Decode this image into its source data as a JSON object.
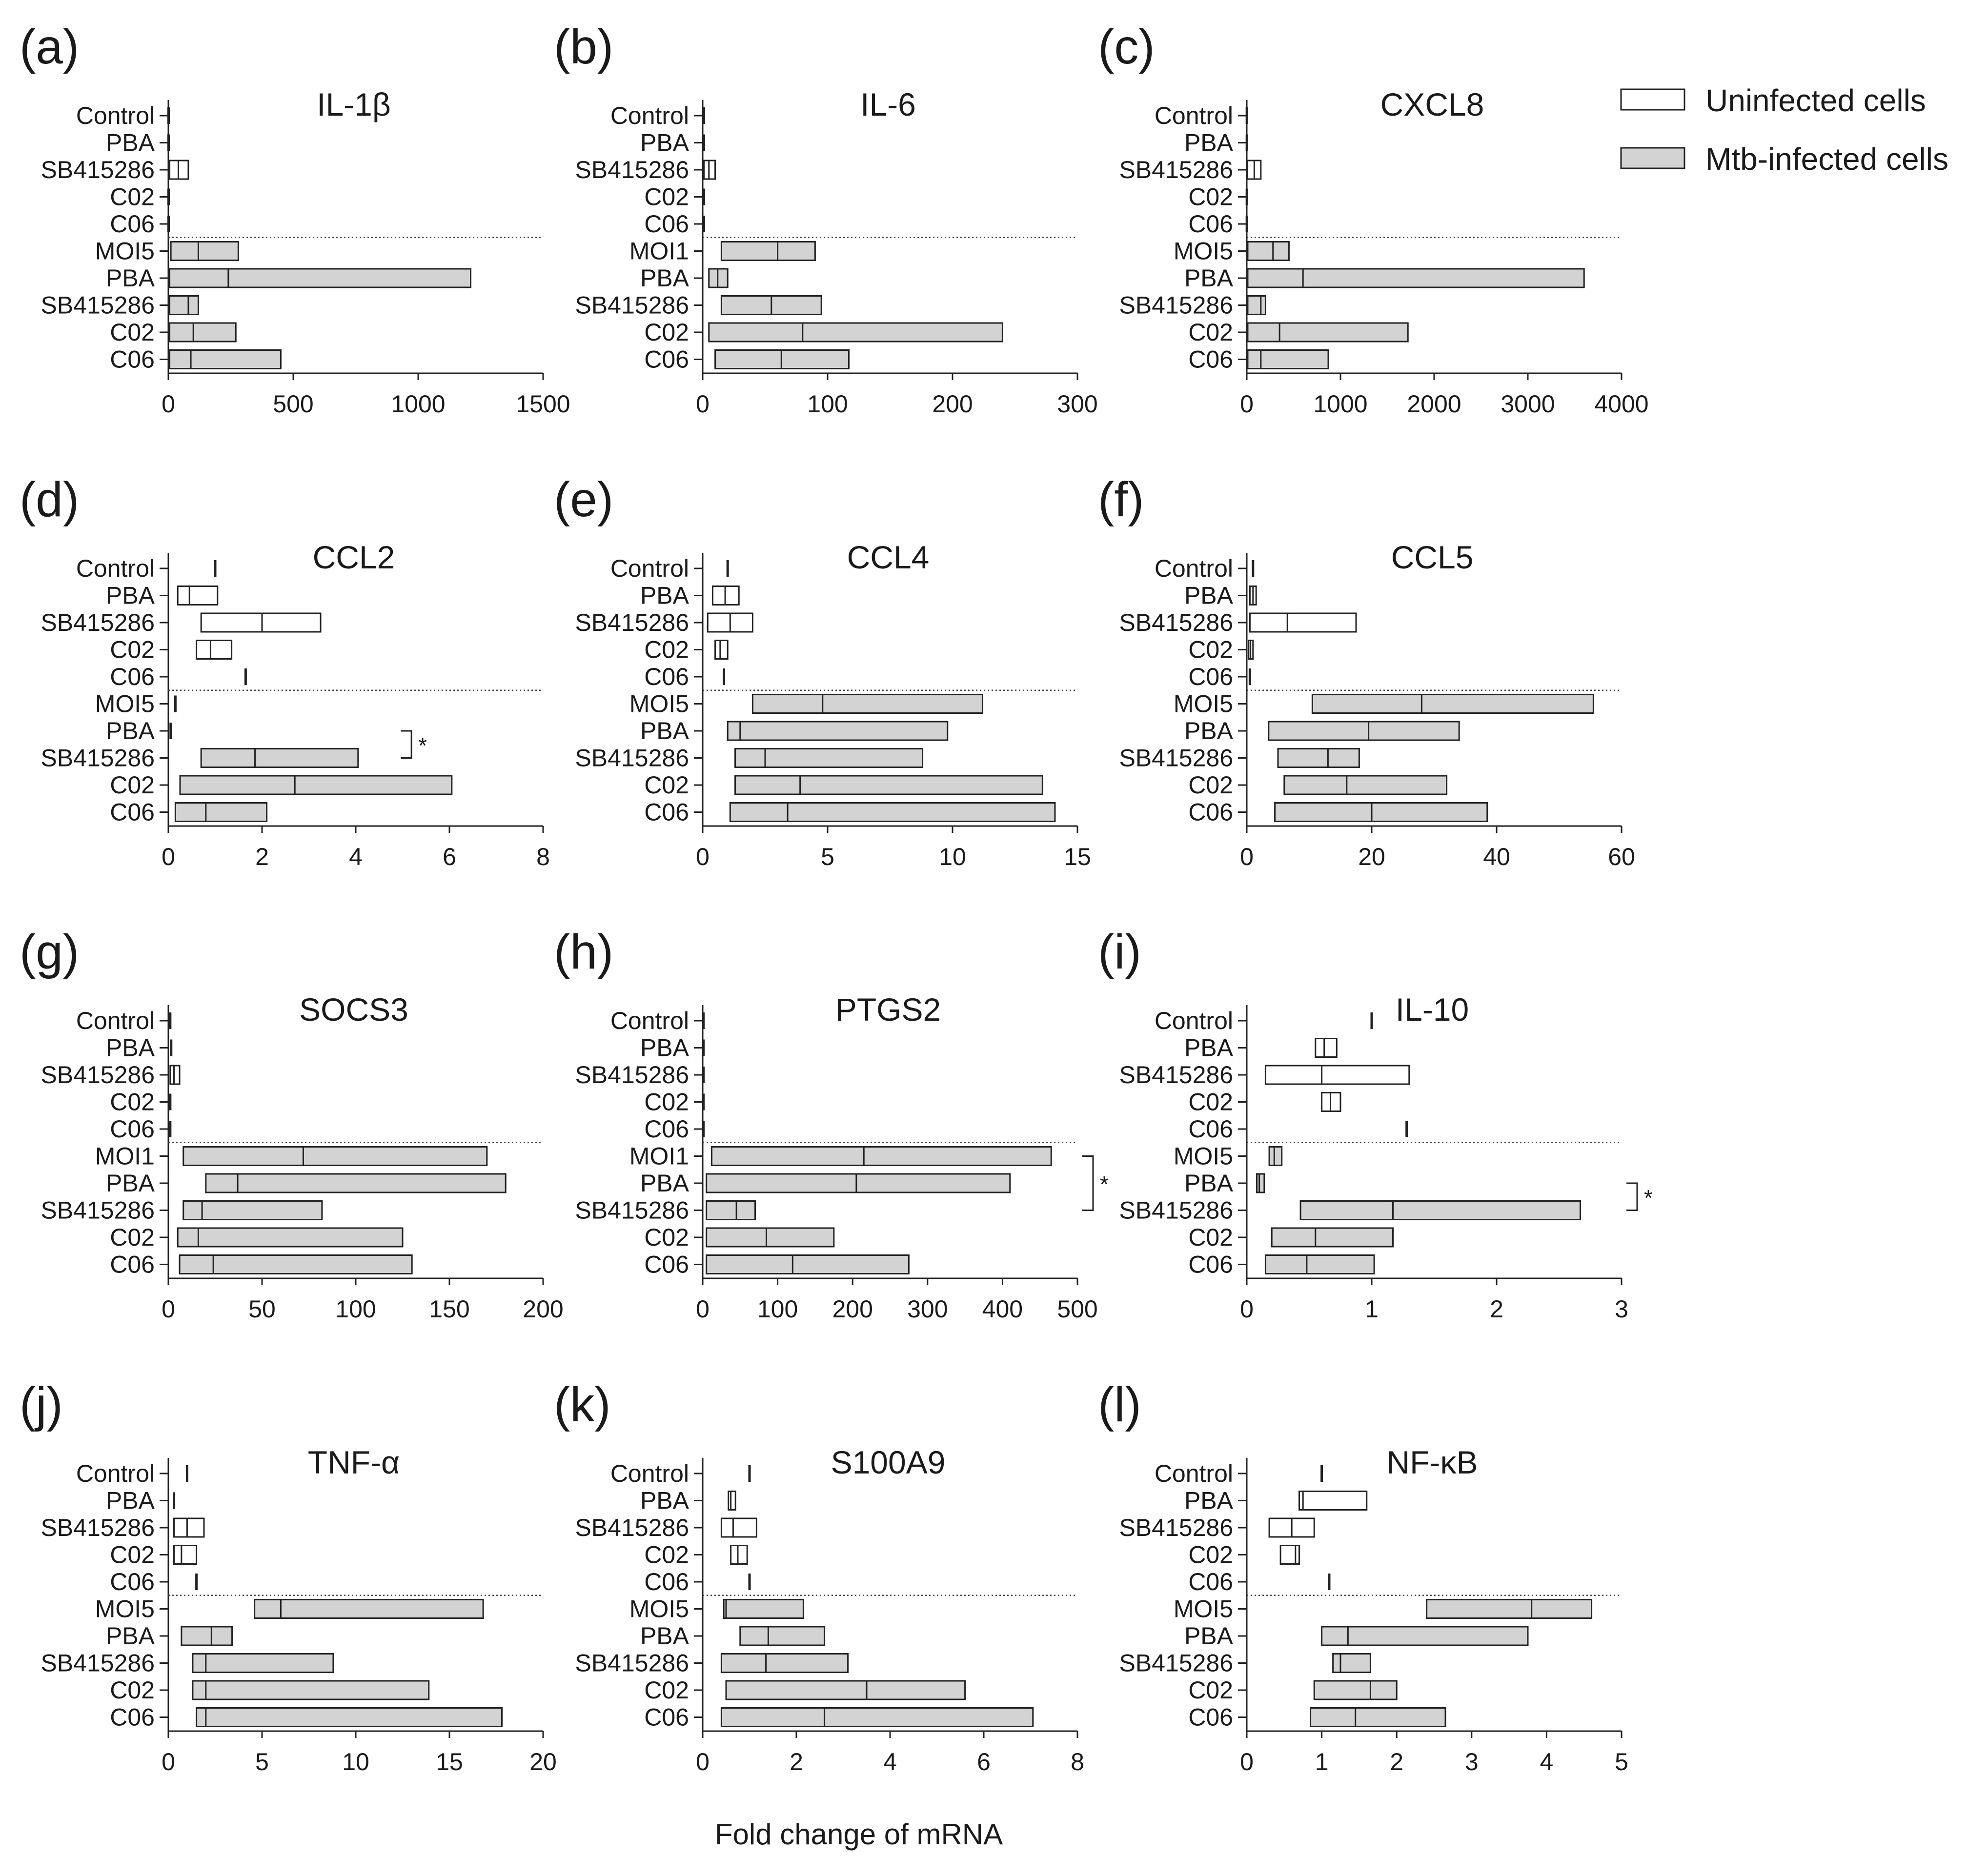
{
  "figure": {
    "xaxis_label": "Fold change of mRNA",
    "legend": [
      {
        "label": "Uninfected cells",
        "fill": "#ffffff"
      },
      {
        "label": "Mtb-infected cells",
        "fill": "#d3d3d3"
      }
    ]
  },
  "chart_data": [
    {
      "letter": "(a)",
      "title": "IL-1β",
      "type": "floating-bar",
      "xlim": [
        0,
        1500
      ],
      "ticks": [
        0,
        500,
        1000,
        1500
      ],
      "categories": [
        "Control",
        "PBA",
        "SB415286",
        "C02",
        "C06",
        "MOI5",
        "PBA",
        "SB415286",
        "C02",
        "C06"
      ],
      "groups": [
        "Uninfected cells",
        "Uninfected cells",
        "Uninfected cells",
        "Uninfected cells",
        "Uninfected cells",
        "Mtb-infected cells",
        "Mtb-infected cells",
        "Mtb-infected cells",
        "Mtb-infected cells",
        "Mtb-infected cells"
      ],
      "min": [
        1,
        1,
        5,
        1,
        1,
        10,
        5,
        5,
        5,
        5
      ],
      "mean": [
        1,
        1,
        40,
        1,
        1,
        120,
        240,
        80,
        100,
        90
      ],
      "max": [
        1,
        1,
        80,
        1,
        1,
        280,
        1210,
        120,
        270,
        450
      ],
      "significance": []
    },
    {
      "letter": "(b)",
      "title": "IL-6",
      "type": "floating-bar",
      "xlim": [
        0,
        300
      ],
      "ticks": [
        0,
        100,
        200,
        300
      ],
      "categories": [
        "Control",
        "PBA",
        "SB415286",
        "C02",
        "C06",
        "MOI1",
        "PBA",
        "SB415286",
        "C02",
        "C06"
      ],
      "groups": [
        "Uninfected cells",
        "Uninfected cells",
        "Uninfected cells",
        "Uninfected cells",
        "Uninfected cells",
        "Mtb-infected cells",
        "Mtb-infected cells",
        "Mtb-infected cells",
        "Mtb-infected cells",
        "Mtb-infected cells"
      ],
      "min": [
        1,
        1,
        1,
        1,
        1,
        15,
        5,
        15,
        5,
        10
      ],
      "mean": [
        1,
        1,
        5,
        1,
        1,
        60,
        12,
        55,
        80,
        63
      ],
      "max": [
        1,
        1,
        10,
        1,
        1,
        90,
        20,
        95,
        240,
        117
      ],
      "significance": []
    },
    {
      "letter": "(c)",
      "title": "CXCL8",
      "type": "floating-bar",
      "xlim": [
        0,
        4000
      ],
      "ticks": [
        0,
        1000,
        2000,
        3000,
        4000
      ],
      "categories": [
        "Control",
        "PBA",
        "SB415286",
        "C02",
        "C06",
        "MOI5",
        "PBA",
        "SB415286",
        "C02",
        "C06"
      ],
      "groups": [
        "Uninfected cells",
        "Uninfected cells",
        "Uninfected cells",
        "Uninfected cells",
        "Uninfected cells",
        "Mtb-infected cells",
        "Mtb-infected cells",
        "Mtb-infected cells",
        "Mtb-infected cells",
        "Mtb-infected cells"
      ],
      "min": [
        1,
        1,
        5,
        1,
        1,
        10,
        10,
        10,
        10,
        10
      ],
      "mean": [
        1,
        1,
        80,
        1,
        1,
        280,
        600,
        150,
        350,
        150
      ],
      "max": [
        1,
        1,
        150,
        1,
        1,
        450,
        3600,
        200,
        1720,
        870
      ],
      "significance": []
    },
    {
      "letter": "(d)",
      "title": "CCL2",
      "type": "floating-bar",
      "xlim": [
        0,
        8
      ],
      "ticks": [
        0,
        2,
        4,
        6,
        8
      ],
      "categories": [
        "Control",
        "PBA",
        "SB415286",
        "C02",
        "C06",
        "MOI5",
        "PBA",
        "SB415286",
        "C02",
        "C06"
      ],
      "groups": [
        "Uninfected cells",
        "Uninfected cells",
        "Uninfected cells",
        "Uninfected cells",
        "Uninfected cells",
        "Mtb-infected cells",
        "Mtb-infected cells",
        "Mtb-infected cells",
        "Mtb-infected cells",
        "Mtb-infected cells"
      ],
      "min": [
        1,
        0.2,
        0.7,
        0.6,
        1.65,
        0.15,
        0.05,
        0.7,
        0.25,
        0.15
      ],
      "mean": [
        1,
        0.45,
        2,
        0.9,
        1.65,
        0.15,
        0.05,
        1.85,
        2.7,
        0.8
      ],
      "max": [
        1,
        1.05,
        3.25,
        1.35,
        1.65,
        0.15,
        0.05,
        4.05,
        6.05,
        2.1
      ],
      "significance": [
        {
          "rows": [
            6,
            7
          ],
          "label": "*"
        }
      ]
    },
    {
      "letter": "(e)",
      "title": "CCL4",
      "type": "floating-bar",
      "xlim": [
        0,
        15
      ],
      "ticks": [
        0,
        5,
        10,
        15
      ],
      "categories": [
        "Control",
        "PBA",
        "SB415286",
        "C02",
        "C06",
        "MOI5",
        "PBA",
        "SB415286",
        "C02",
        "C06"
      ],
      "groups": [
        "Uninfected cells",
        "Uninfected cells",
        "Uninfected cells",
        "Uninfected cells",
        "Uninfected cells",
        "Mtb-infected cells",
        "Mtb-infected cells",
        "Mtb-infected cells",
        "Mtb-infected cells",
        "Mtb-infected cells"
      ],
      "min": [
        1,
        0.4,
        0.2,
        0.5,
        0.85,
        2,
        1,
        1.3,
        1.3,
        1.1
      ],
      "mean": [
        1,
        0.9,
        1.1,
        0.7,
        0.85,
        4.8,
        1.5,
        2.5,
        3.9,
        3.4
      ],
      "max": [
        1,
        1.45,
        2,
        1,
        0.85,
        11.2,
        9.8,
        8.8,
        13.6,
        14.1
      ],
      "significance": []
    },
    {
      "letter": "(f)",
      "title": "CCL5",
      "type": "floating-bar",
      "xlim": [
        0,
        60
      ],
      "ticks": [
        0,
        20,
        40,
        60
      ],
      "categories": [
        "Control",
        "PBA",
        "SB415286",
        "C02",
        "C06",
        "MOI5",
        "PBA",
        "SB415286",
        "C02",
        "C06"
      ],
      "groups": [
        "Uninfected cells",
        "Uninfected cells",
        "Uninfected cells",
        "Uninfected cells",
        "Uninfected cells",
        "Mtb-infected cells",
        "Mtb-infected cells",
        "Mtb-infected cells",
        "Mtb-infected cells",
        "Mtb-infected cells"
      ],
      "min": [
        1,
        0.5,
        0.5,
        0.3,
        0.5,
        10.5,
        3.5,
        5,
        6,
        4.5
      ],
      "mean": [
        1,
        1,
        6.5,
        0.6,
        0.5,
        28,
        19.5,
        13,
        16,
        20
      ],
      "max": [
        1,
        1.5,
        17.5,
        1,
        0.5,
        55.5,
        34,
        18,
        32,
        38.5
      ],
      "significance": []
    },
    {
      "letter": "(g)",
      "title": "SOCS3",
      "type": "floating-bar",
      "xlim": [
        0,
        200
      ],
      "ticks": [
        0,
        50,
        100,
        150,
        200
      ],
      "categories": [
        "Control",
        "PBA",
        "SB415286",
        "C02",
        "C06",
        "MOI1",
        "PBA",
        "SB415286",
        "C02",
        "C06"
      ],
      "groups": [
        "Uninfected cells",
        "Uninfected cells",
        "Uninfected cells",
        "Uninfected cells",
        "Uninfected cells",
        "Mtb-infected cells",
        "Mtb-infected cells",
        "Mtb-infected cells",
        "Mtb-infected cells",
        "Mtb-infected cells"
      ],
      "min": [
        1,
        1,
        1,
        1,
        1,
        8,
        20,
        8,
        5,
        6
      ],
      "mean": [
        1,
        1.5,
        3,
        1,
        1,
        72,
        37,
        18,
        16,
        24
      ],
      "max": [
        1,
        2,
        6,
        1,
        1,
        170,
        180,
        82,
        125,
        130
      ],
      "significance": []
    },
    {
      "letter": "(h)",
      "title": "PTGS2",
      "type": "floating-bar",
      "xlim": [
        0,
        500
      ],
      "ticks": [
        0,
        100,
        200,
        300,
        400,
        500
      ],
      "categories": [
        "Control",
        "PBA",
        "SB415286",
        "C02",
        "C06",
        "MOI1",
        "PBA",
        "SB415286",
        "C02",
        "C06"
      ],
      "groups": [
        "Uninfected cells",
        "Uninfected cells",
        "Uninfected cells",
        "Uninfected cells",
        "Uninfected cells",
        "Mtb-infected cells",
        "Mtb-infected cells",
        "Mtb-infected cells",
        "Mtb-infected cells",
        "Mtb-infected cells"
      ],
      "min": [
        1,
        1,
        1,
        1,
        1,
        12,
        5,
        5,
        5,
        5
      ],
      "mean": [
        1,
        1,
        1,
        1,
        1,
        215,
        205,
        45,
        85,
        120
      ],
      "max": [
        1,
        1,
        1,
        1,
        1,
        465,
        410,
        70,
        175,
        275
      ],
      "significance": [
        {
          "rows": [
            5,
            7
          ],
          "label": "*"
        }
      ]
    },
    {
      "letter": "(i)",
      "title": "IL-10",
      "type": "floating-bar",
      "xlim": [
        0,
        3
      ],
      "ticks": [
        0,
        1,
        2,
        3
      ],
      "categories": [
        "Control",
        "PBA",
        "SB415286",
        "C02",
        "C06",
        "MOI5",
        "PBA",
        "SB415286",
        "C02",
        "C06"
      ],
      "groups": [
        "Uninfected cells",
        "Uninfected cells",
        "Uninfected cells",
        "Uninfected cells",
        "Uninfected cells",
        "Mtb-infected cells",
        "Mtb-infected cells",
        "Mtb-infected cells",
        "Mtb-infected cells",
        "Mtb-infected cells"
      ],
      "min": [
        1,
        0.55,
        0.15,
        0.6,
        1.28,
        0.18,
        0.08,
        0.43,
        0.2,
        0.15
      ],
      "mean": [
        1,
        0.62,
        0.6,
        0.67,
        1.28,
        0.22,
        0.1,
        1.17,
        0.55,
        0.48
      ],
      "max": [
        1,
        0.72,
        1.3,
        0.75,
        1.28,
        0.28,
        0.14,
        2.67,
        1.17,
        1.02
      ],
      "significance": [
        {
          "rows": [
            6,
            7
          ],
          "label": "*"
        }
      ]
    },
    {
      "letter": "(j)",
      "title": "TNF-α",
      "type": "floating-bar",
      "xlim": [
        0,
        20
      ],
      "ticks": [
        0,
        5,
        10,
        15,
        20
      ],
      "categories": [
        "Control",
        "PBA",
        "SB415286",
        "C02",
        "C06",
        "MOI5",
        "PBA",
        "SB415286",
        "C02",
        "C06"
      ],
      "groups": [
        "Uninfected cells",
        "Uninfected cells",
        "Uninfected cells",
        "Uninfected cells",
        "Uninfected cells",
        "Mtb-infected cells",
        "Mtb-infected cells",
        "Mtb-infected cells",
        "Mtb-infected cells",
        "Mtb-infected cells"
      ],
      "min": [
        1,
        0.3,
        0.3,
        0.3,
        1.5,
        4.6,
        0.7,
        1.3,
        1.3,
        1.5
      ],
      "mean": [
        1,
        0.3,
        1,
        0.7,
        1.5,
        6,
        2.3,
        2,
        2,
        2
      ],
      "max": [
        1,
        0.3,
        1.9,
        1.5,
        1.5,
        16.8,
        3.4,
        8.8,
        13.9,
        17.8
      ],
      "significance": []
    },
    {
      "letter": "(k)",
      "title": "S100A9",
      "type": "floating-bar",
      "xlim": [
        0,
        8
      ],
      "ticks": [
        0,
        2,
        4,
        6,
        8
      ],
      "categories": [
        "Control",
        "PBA",
        "SB415286",
        "C02",
        "C06",
        "MOI5",
        "PBA",
        "SB415286",
        "C02",
        "C06"
      ],
      "groups": [
        "Uninfected cells",
        "Uninfected cells",
        "Uninfected cells",
        "Uninfected cells",
        "Uninfected cells",
        "Mtb-infected cells",
        "Mtb-infected cells",
        "Mtb-infected cells",
        "Mtb-infected cells",
        "Mtb-infected cells"
      ],
      "min": [
        1,
        0.55,
        0.4,
        0.6,
        1,
        0.45,
        0.8,
        0.4,
        0.5,
        0.4
      ],
      "mean": [
        1,
        0.6,
        0.65,
        0.75,
        1,
        0.5,
        1.4,
        1.35,
        3.5,
        2.6
      ],
      "max": [
        1,
        0.7,
        1.15,
        0.95,
        1,
        2.15,
        2.6,
        3.1,
        5.6,
        7.05
      ],
      "significance": []
    },
    {
      "letter": "(l)",
      "title": "NF-κB",
      "type": "floating-bar",
      "xlim": [
        0,
        5
      ],
      "ticks": [
        0,
        1,
        2,
        3,
        4,
        5
      ],
      "categories": [
        "Control",
        "PBA",
        "SB415286",
        "C02",
        "C06",
        "MOI5",
        "PBA",
        "SB415286",
        "C02",
        "C06"
      ],
      "groups": [
        "Uninfected cells",
        "Uninfected cells",
        "Uninfected cells",
        "Uninfected cells",
        "Uninfected cells",
        "Mtb-infected cells",
        "Mtb-infected cells",
        "Mtb-infected cells",
        "Mtb-infected cells",
        "Mtb-infected cells"
      ],
      "min": [
        1,
        0.7,
        0.3,
        0.45,
        1.1,
        2.4,
        1,
        1.15,
        0.9,
        0.85
      ],
      "mean": [
        1,
        0.75,
        0.6,
        0.65,
        1.1,
        3.8,
        1.35,
        1.25,
        1.65,
        1.45
      ],
      "max": [
        1,
        1.6,
        0.9,
        0.7,
        1.1,
        4.6,
        3.75,
        1.65,
        2,
        2.65
      ],
      "significance": []
    }
  ]
}
